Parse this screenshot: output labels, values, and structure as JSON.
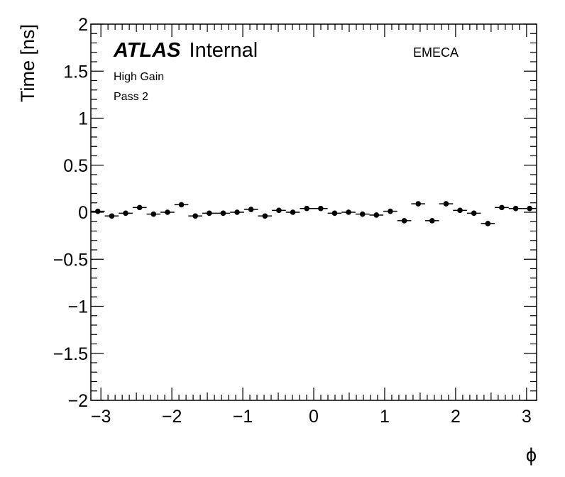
{
  "chart_data": {
    "type": "scatter",
    "xlabel": "ϕ",
    "ylabel": "Time [ns]",
    "xlim": [
      -3.1416,
      3.1416
    ],
    "ylim": [
      -2,
      2
    ],
    "xticks": [
      -3,
      -2,
      -1,
      0,
      1,
      2,
      3
    ],
    "xtick_labels": [
      "−3",
      "−2",
      "−1",
      "0",
      "1",
      "2",
      "3"
    ],
    "yticks": [
      -2,
      -1.5,
      -1,
      -0.5,
      0,
      0.5,
      1,
      1.5,
      2
    ],
    "ytick_labels": [
      "−2",
      "−1.5",
      "−1",
      "−0.5",
      "0",
      "0.5",
      "1",
      "1.5",
      "2"
    ],
    "grid": false,
    "annotations": {
      "atlas": "ATLAS",
      "atlas_suffix": "Internal",
      "gain": "High Gain",
      "pass": "Pass 2",
      "region": "EMECA"
    },
    "bin_width": 0.19635,
    "series": [
      {
        "x": [
          -3.0434,
          -2.8471,
          -2.6507,
          -2.4544,
          -2.258,
          -2.0617,
          -1.8653,
          -1.669,
          -1.4726,
          -1.2763,
          -1.0799,
          -0.8836,
          -0.6872,
          -0.4909,
          -0.2945,
          -0.0982,
          0.0982,
          0.2945,
          0.4909,
          0.6872,
          0.8836,
          1.0799,
          1.2763,
          1.4726,
          1.669,
          1.8653,
          2.0617,
          2.258,
          2.4544,
          2.6507,
          2.8471,
          3.0434
        ],
        "y": [
          0.01,
          -0.04,
          -0.01,
          0.05,
          -0.02,
          0.0,
          0.08,
          -0.04,
          -0.01,
          -0.01,
          0.0,
          0.03,
          -0.04,
          0.02,
          0.0,
          0.04,
          0.04,
          -0.01,
          0.0,
          -0.02,
          -0.03,
          0.01,
          -0.09,
          0.09,
          -0.09,
          0.09,
          0.02,
          -0.01,
          -0.12,
          0.05,
          0.04,
          0.04
        ]
      }
    ]
  }
}
